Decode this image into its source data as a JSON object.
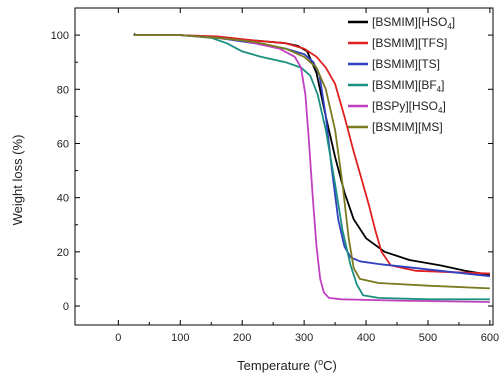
{
  "chart_data": {
    "type": "line",
    "xlabel": "Temperature",
    "xlabel_unit": "(°C)",
    "ylabel": "Weight loss (%)",
    "xlim": [
      -70,
      605
    ],
    "ylim": [
      -7,
      110
    ],
    "xticks": [
      0,
      100,
      200,
      300,
      400,
      500,
      600
    ],
    "yticks": [
      0,
      20,
      40,
      60,
      80,
      100
    ],
    "grid": false,
    "legend_position": "top-right",
    "series": [
      {
        "name": "[BSMIM][HSO₄]",
        "legend_parts": [
          "[BSMIM][HSO",
          "4",
          "]"
        ],
        "color": "#000000",
        "points": [
          [
            25,
            100.5
          ],
          [
            28,
            100
          ],
          [
            100,
            100
          ],
          [
            160,
            99
          ],
          [
            220,
            98
          ],
          [
            270,
            97
          ],
          [
            290,
            96
          ],
          [
            305,
            94
          ],
          [
            320,
            86
          ],
          [
            335,
            70
          ],
          [
            350,
            55
          ],
          [
            365,
            42
          ],
          [
            380,
            32
          ],
          [
            400,
            25
          ],
          [
            430,
            20
          ],
          [
            470,
            17
          ],
          [
            520,
            15
          ],
          [
            560,
            13
          ],
          [
            600,
            11.5
          ]
        ]
      },
      {
        "name": "[BSMIM][TFS]",
        "legend_parts": [
          "[BSMIM][TFS]"
        ],
        "color": "#e02020",
        "points": [
          [
            25,
            100
          ],
          [
            100,
            100
          ],
          [
            160,
            99.5
          ],
          [
            220,
            98
          ],
          [
            270,
            97
          ],
          [
            300,
            95
          ],
          [
            320,
            92
          ],
          [
            335,
            88
          ],
          [
            350,
            82
          ],
          [
            365,
            70
          ],
          [
            380,
            57
          ],
          [
            395,
            45
          ],
          [
            405,
            37
          ],
          [
            415,
            28
          ],
          [
            425,
            20
          ],
          [
            440,
            15
          ],
          [
            480,
            13
          ],
          [
            540,
            12.5
          ],
          [
            600,
            12
          ]
        ]
      },
      {
        "name": "[BSMIM][TS]",
        "legend_parts": [
          "[BSMIM][TS]"
        ],
        "color": "#3040c0",
        "points": [
          [
            25,
            100
          ],
          [
            100,
            100
          ],
          [
            160,
            99
          ],
          [
            220,
            97
          ],
          [
            270,
            95
          ],
          [
            300,
            93
          ],
          [
            315,
            90
          ],
          [
            325,
            85
          ],
          [
            335,
            70
          ],
          [
            345,
            50
          ],
          [
            355,
            32
          ],
          [
            365,
            22
          ],
          [
            375,
            18
          ],
          [
            390,
            16.5
          ],
          [
            420,
            15.5
          ],
          [
            460,
            14.5
          ],
          [
            520,
            13
          ],
          [
            600,
            11
          ]
        ]
      },
      {
        "name": "[BSMIM][BF₄]",
        "legend_parts": [
          "[BSMIM][BF",
          "4",
          "]"
        ],
        "color": "#1a9080",
        "points": [
          [
            25,
            100
          ],
          [
            100,
            100
          ],
          [
            150,
            99
          ],
          [
            175,
            97
          ],
          [
            200,
            94
          ],
          [
            230,
            92
          ],
          [
            270,
            90
          ],
          [
            295,
            88
          ],
          [
            310,
            85
          ],
          [
            322,
            78
          ],
          [
            335,
            65
          ],
          [
            350,
            45
          ],
          [
            362,
            28
          ],
          [
            375,
            15
          ],
          [
            385,
            8
          ],
          [
            395,
            4
          ],
          [
            420,
            3
          ],
          [
            500,
            2.5
          ],
          [
            600,
            2.5
          ]
        ]
      },
      {
        "name": "[BSPy][HSO₄]",
        "legend_parts": [
          "[BSPy][HSO",
          "4",
          "]"
        ],
        "color": "#c040c0",
        "points": [
          [
            25,
            100
          ],
          [
            100,
            100
          ],
          [
            160,
            99
          ],
          [
            200,
            98
          ],
          [
            230,
            96.5
          ],
          [
            260,
            95
          ],
          [
            285,
            92
          ],
          [
            295,
            88
          ],
          [
            302,
            78
          ],
          [
            308,
            60
          ],
          [
            314,
            40
          ],
          [
            320,
            22
          ],
          [
            326,
            10
          ],
          [
            332,
            5
          ],
          [
            340,
            3
          ],
          [
            360,
            2.5
          ],
          [
            450,
            2
          ],
          [
            600,
            1.5
          ]
        ]
      },
      {
        "name": "[BSMIM][MS]",
        "legend_parts": [
          "[BSMIM][MS]"
        ],
        "color": "#7a7a20",
        "points": [
          [
            25,
            100
          ],
          [
            100,
            100
          ],
          [
            160,
            99
          ],
          [
            220,
            97.5
          ],
          [
            270,
            95
          ],
          [
            300,
            92
          ],
          [
            320,
            88
          ],
          [
            335,
            80
          ],
          [
            350,
            65
          ],
          [
            362,
            45
          ],
          [
            372,
            25
          ],
          [
            380,
            14
          ],
          [
            390,
            10
          ],
          [
            420,
            8.5
          ],
          [
            500,
            7.5
          ],
          [
            600,
            6.5
          ]
        ]
      }
    ]
  }
}
